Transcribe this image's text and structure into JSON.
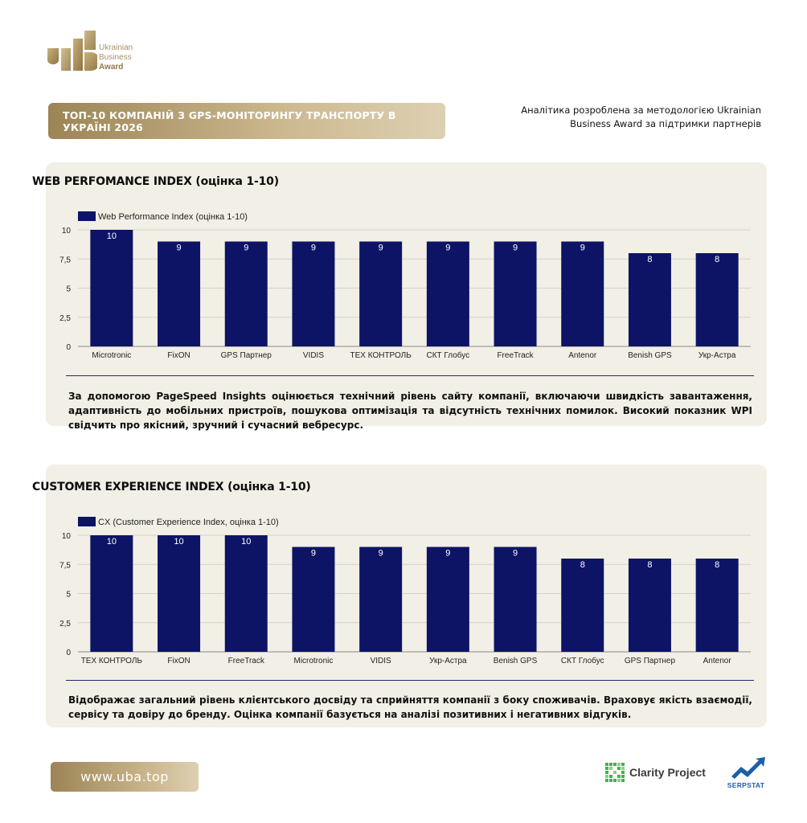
{
  "header": {
    "logo_lines": [
      "Ukrainian",
      "Business",
      "Award"
    ],
    "title": "ТОП-10 КОМПАНІЙ З GPS-МОНІТОРИНГУ ТРАНСПОРТУ В УКРАЇНІ 2026",
    "credit": "Аналітика розроблена за методологією Ukrainian Business Award за підтримки партнерів"
  },
  "sections": [
    {
      "title": "WEB PERFOMANCE INDEX (оцінка 1-10)",
      "description": "За допомогою PageSpeed Insights оцінюється технічний рівень сайту компанії, включаючи швидкість завантаження, адаптивність до мобільних пристроїв, пошукова оптимізація та відсутність технічних помилок. Високий показник WPI свідчить про якісний, зручний і сучасний вебресурс."
    },
    {
      "title": "CUSTOMER EXPERIENCE INDEX (оцінка 1-10)",
      "description": "Відображає загальний рівень клієнтського досвіду та сприйняття компанії з боку споживачів. Враховує якість взаємодії, сервісу та довіру до бренду. Оцінка компанії базується на аналізі позитивних і негативних відгуків."
    }
  ],
  "chart_data": [
    {
      "type": "bar",
      "title": "WEB PERFOMANCE INDEX (оцінка 1-10)",
      "categories": [
        "Microtronic",
        "FixON",
        "GPS Партнер",
        "VIDIS",
        "ТЕХ КОНТРОЛЬ",
        "СКТ Глобус",
        "FreeTrack",
        "Antenor",
        "Benish GPS",
        "Укр-Астра"
      ],
      "series": [
        {
          "name": "Web Performance Index (оцінка 1-10)",
          "values": [
            10,
            9,
            9,
            9,
            9,
            9,
            9,
            9,
            8,
            8
          ]
        }
      ],
      "y_ticks": [
        "0",
        "2,5",
        "5",
        "7,5",
        "10"
      ],
      "ylim": [
        0,
        10
      ],
      "grid": true,
      "legend": "top-left",
      "bar_color": "#0d1466"
    },
    {
      "type": "bar",
      "title": "CUSTOMER EXPERIENCE INDEX (оцінка 1-10)",
      "categories": [
        "ТЕХ КОНТРОЛЬ",
        "FixON",
        "FreeTrack",
        "Microtronic",
        "VIDIS",
        "Укр-Астра",
        "Benish GPS",
        "СКТ Глобус",
        "GPS Партнер",
        "Antenor"
      ],
      "series": [
        {
          "name": "CX (Customer Experience Index, оцінка 1-10)",
          "values": [
            10,
            10,
            10,
            9,
            9,
            9,
            9,
            8,
            8,
            8
          ]
        }
      ],
      "y_ticks": [
        "0",
        "2,5",
        "5",
        "7,5",
        "10"
      ],
      "ylim": [
        0,
        10
      ],
      "grid": true,
      "legend": "top-left",
      "bar_color": "#0d1466"
    }
  ],
  "footer": {
    "url": "www.uba.top",
    "partner1": "Clarity Project",
    "partner2": "SERPSTAT"
  }
}
